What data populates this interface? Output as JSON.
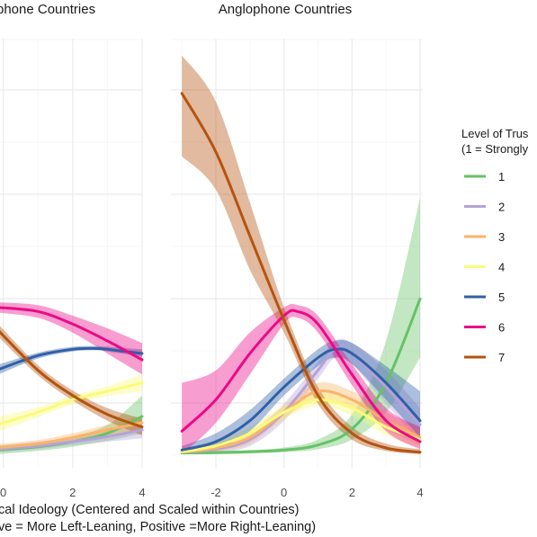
{
  "chart_data": {
    "type": "line",
    "xlabel": "cal Ideology (Centered and Scaled within Countries)",
    "xlabel_line2": "ve = More Left-Leaning, Positive =More Right-Leaning)",
    "legend": {
      "title_line1": "Level of Trus",
      "title_line2": "(1 = Strongly",
      "placement": "right"
    },
    "series": [
      {
        "name": "1",
        "color": "#66c266"
      },
      {
        "name": "2",
        "color": "#b5a2d9"
      },
      {
        "name": "3",
        "color": "#fbb36a"
      },
      {
        "name": "4",
        "color": "#fbfb7a"
      },
      {
        "name": "5",
        "color": "#3060a8"
      },
      {
        "name": "6",
        "color": "#ea0a87"
      },
      {
        "name": "7",
        "color": "#b5530f"
      }
    ],
    "panels": [
      {
        "title": "phone Countries",
        "xlim": [
          -0.2,
          4.0
        ],
        "x_ticks": [
          0,
          2,
          4
        ],
        "x_tick_labels": [
          "0",
          "2",
          "4"
        ],
        "series_data": [
          {
            "series": "1",
            "x": [
              -0.2,
              1,
              2,
              3,
              4
            ],
            "y": [
              0.01,
              0.018,
              0.03,
              0.05,
              0.09
            ],
            "lower": [
              0.0,
              0.008,
              0.018,
              0.032,
              0.05
            ],
            "upper": [
              0.02,
              0.028,
              0.042,
              0.07,
              0.14
            ]
          },
          {
            "series": "2",
            "x": [
              -0.2,
              1,
              2,
              3,
              4
            ],
            "y": [
              0.012,
              0.02,
              0.03,
              0.042,
              0.058
            ],
            "lower": [
              0.004,
              0.012,
              0.022,
              0.03,
              0.038
            ],
            "upper": [
              0.02,
              0.03,
              0.04,
              0.055,
              0.075
            ]
          },
          {
            "series": "3",
            "x": [
              -0.2,
              1,
              2,
              3,
              4
            ],
            "y": [
              0.015,
              0.025,
              0.04,
              0.058,
              0.075
            ],
            "lower": [
              0.008,
              0.017,
              0.03,
              0.044,
              0.058
            ],
            "upper": [
              0.024,
              0.034,
              0.05,
              0.07,
              0.092
            ]
          },
          {
            "series": "4",
            "x": [
              -0.2,
              1,
              2,
              3,
              4
            ],
            "y": [
              0.07,
              0.1,
              0.13,
              0.15,
              0.17
            ],
            "lower": [
              0.052,
              0.088,
              0.12,
              0.138,
              0.15
            ],
            "upper": [
              0.088,
              0.112,
              0.14,
              0.162,
              0.19
            ]
          },
          {
            "series": "5",
            "x": [
              -0.2,
              1,
              2,
              2.6,
              3,
              4
            ],
            "y": [
              0.2,
              0.235,
              0.25,
              0.252,
              0.25,
              0.24
            ],
            "lower": [
              0.188,
              0.228,
              0.245,
              0.248,
              0.245,
              0.232
            ],
            "upper": [
              0.212,
              0.242,
              0.256,
              0.258,
              0.256,
              0.25
            ]
          },
          {
            "series": "6",
            "x": [
              -0.2,
              1,
              2,
              3,
              4
            ],
            "y": [
              0.35,
              0.34,
              0.31,
              0.27,
              0.225
            ],
            "lower": [
              0.338,
              0.325,
              0.29,
              0.24,
              0.19
            ],
            "upper": [
              0.362,
              0.355,
              0.33,
              0.3,
              0.265
            ]
          },
          {
            "series": "7",
            "x": [
              -0.2,
              1,
              2,
              3,
              4
            ],
            "y": [
              0.3,
              0.2,
              0.14,
              0.095,
              0.065
            ],
            "lower": [
              0.285,
              0.188,
              0.128,
              0.08,
              0.045
            ],
            "upper": [
              0.315,
              0.212,
              0.152,
              0.11,
              0.085
            ]
          }
        ]
      },
      {
        "title": "Anglophone Countries",
        "xlim": [
          -3.2,
          4.0
        ],
        "x_ticks": [
          -2,
          0,
          2,
          4
        ],
        "x_tick_labels": [
          "-2",
          "0",
          "2",
          "4"
        ],
        "series_data": [
          {
            "series": "1",
            "x": [
              -3,
              -2,
              -1,
              0,
              1,
              2,
              3,
              4
            ],
            "y": [
              0.003,
              0.004,
              0.006,
              0.01,
              0.022,
              0.06,
              0.17,
              0.37
            ],
            "lower": [
              0.0,
              0.0,
              0.002,
              0.005,
              0.012,
              0.035,
              0.1,
              0.23
            ],
            "upper": [
              0.006,
              0.008,
              0.01,
              0.016,
              0.035,
              0.095,
              0.27,
              0.61
            ]
          },
          {
            "series": "2",
            "x": [
              -3,
              -2,
              -1,
              0,
              1,
              1.5,
              2,
              3,
              4
            ],
            "y": [
              0.005,
              0.012,
              0.035,
              0.1,
              0.2,
              0.25,
              0.24,
              0.16,
              0.07
            ],
            "lower": [
              0.0,
              0.004,
              0.02,
              0.08,
              0.18,
              0.23,
              0.215,
              0.12,
              0.03
            ],
            "upper": [
              0.012,
              0.022,
              0.05,
              0.12,
              0.22,
              0.27,
              0.265,
              0.2,
              0.11
            ]
          },
          {
            "series": "3",
            "x": [
              -3,
              -2,
              -1,
              0,
              1,
              2,
              3,
              4
            ],
            "y": [
              0.005,
              0.015,
              0.04,
              0.1,
              0.15,
              0.13,
              0.08,
              0.04
            ],
            "lower": [
              0.0,
              0.006,
              0.026,
              0.085,
              0.13,
              0.11,
              0.06,
              0.02
            ],
            "upper": [
              0.012,
              0.026,
              0.055,
              0.115,
              0.17,
              0.15,
              0.1,
              0.062
            ]
          },
          {
            "series": "4",
            "x": [
              -3,
              -2,
              -1,
              0,
              1,
              2,
              3,
              4
            ],
            "y": [
              0.006,
              0.02,
              0.05,
              0.1,
              0.13,
              0.11,
              0.065,
              0.035
            ],
            "lower": [
              0.0,
              0.01,
              0.036,
              0.085,
              0.115,
              0.092,
              0.045,
              0.015
            ],
            "upper": [
              0.014,
              0.032,
              0.065,
              0.115,
              0.145,
              0.13,
              0.085,
              0.058
            ]
          },
          {
            "series": "5",
            "x": [
              -3,
              -2,
              -1,
              0,
              1,
              1.5,
              2,
              3,
              4
            ],
            "y": [
              0.01,
              0.03,
              0.08,
              0.16,
              0.23,
              0.25,
              0.24,
              0.17,
              0.08
            ],
            "lower": [
              0.0,
              0.012,
              0.055,
              0.14,
              0.21,
              0.23,
              0.215,
              0.13,
              0.04
            ],
            "upper": [
              0.02,
              0.05,
              0.105,
              0.18,
              0.25,
              0.27,
              0.265,
              0.21,
              0.15
            ]
          },
          {
            "series": "6",
            "x": [
              -3,
              -2,
              -1,
              0,
              0.4,
              1,
              2,
              3,
              4
            ],
            "y": [
              0.055,
              0.13,
              0.24,
              0.33,
              0.34,
              0.31,
              0.19,
              0.08,
              0.03
            ],
            "lower": [
              0.0,
              0.075,
              0.19,
              0.31,
              0.325,
              0.29,
              0.165,
              0.055,
              0.012
            ],
            "upper": [
              0.17,
              0.2,
              0.29,
              0.35,
              0.355,
              0.33,
              0.215,
              0.11,
              0.065
            ]
          },
          {
            "series": "7",
            "x": [
              -3,
              -2,
              -1,
              0,
              1,
              2,
              3,
              4
            ],
            "y": [
              0.86,
              0.72,
              0.52,
              0.32,
              0.14,
              0.05,
              0.015,
              0.005
            ],
            "lower": [
              0.71,
              0.63,
              0.44,
              0.29,
              0.12,
              0.035,
              0.008,
              0.0
            ],
            "upper": [
              0.95,
              0.84,
              0.6,
              0.35,
              0.16,
              0.065,
              0.025,
              0.012
            ]
          }
        ]
      }
    ]
  }
}
